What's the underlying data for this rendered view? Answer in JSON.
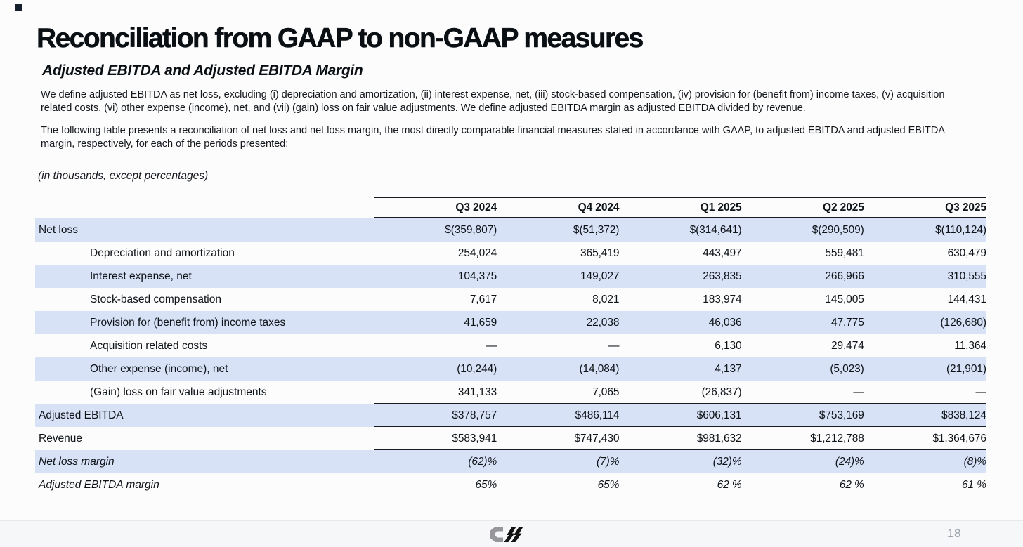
{
  "slide": {
    "title": "Reconciliation from GAAP to non-GAAP measures",
    "subtitle": "Adjusted EBITDA and Adjusted EBITDA Margin",
    "paragraph1": "We define adjusted EBITDA as net loss, excluding (i) depreciation and amortization, (ii) interest expense, net, (iii) stock-based compensation, (iv) provision for (benefit from) income taxes, (v) acquisition related costs, (vi) other expense (income), net, and (vii) (gain) loss on fair value adjustments. We define adjusted EBITDA margin as adjusted EBITDA divided by revenue.",
    "paragraph2": "The following table presents a reconciliation of net loss and net loss margin, the most directly comparable financial measures stated in accordance with GAAP, to adjusted EBITDA and adjusted EBITDA margin, respectively, for each of the periods presented:",
    "units_note": "(in thousands, except percentages)",
    "page_number": "18"
  },
  "colors": {
    "stripe": "#d8e2f7",
    "rule": "#161b22",
    "footer_bg": "#f6f7f9",
    "page_number": "#9aa1ac",
    "logo_gray": "#97979b",
    "logo_black": "#141414"
  },
  "icons": {
    "logo": "coreweave-logo"
  },
  "table": {
    "columns": [
      "Q3 2024",
      "Q4 2024",
      "Q1 2025",
      "Q2 2025",
      "Q3 2025"
    ],
    "rows": [
      {
        "label": "Net loss",
        "indent": false,
        "italic": false,
        "shaded": true,
        "rules": [],
        "values": [
          "$(359,807)",
          "$(51,372)",
          "$(314,641)",
          "$(290,509)",
          "$(110,124)"
        ]
      },
      {
        "label": "Depreciation and amortization",
        "indent": true,
        "italic": false,
        "shaded": false,
        "rules": [],
        "values": [
          "254,024",
          "365,419",
          "443,497",
          "559,481",
          "630,479"
        ]
      },
      {
        "label": "Interest expense, net",
        "indent": true,
        "italic": false,
        "shaded": true,
        "rules": [],
        "values": [
          "104,375",
          "149,027",
          "263,835",
          "266,966",
          "310,555"
        ]
      },
      {
        "label": "Stock-based compensation",
        "indent": true,
        "italic": false,
        "shaded": false,
        "rules": [],
        "values": [
          "7,617",
          "8,021",
          "183,974",
          "145,005",
          "144,431"
        ]
      },
      {
        "label": "Provision for (benefit from) income taxes",
        "indent": true,
        "italic": false,
        "shaded": true,
        "rules": [],
        "values": [
          "41,659",
          "22,038",
          "46,036",
          "47,775",
          "(126,680)"
        ]
      },
      {
        "label": "Acquisition related costs",
        "indent": true,
        "italic": false,
        "shaded": false,
        "rules": [],
        "values": [
          "—",
          "—",
          "6,130",
          "29,474",
          "11,364"
        ]
      },
      {
        "label": "Other expense (income), net",
        "indent": true,
        "italic": false,
        "shaded": true,
        "rules": [],
        "values": [
          "(10,244)",
          "(14,084)",
          "4,137",
          "(5,023)",
          "(21,901)"
        ]
      },
      {
        "label": "(Gain) loss on fair value adjustments",
        "indent": true,
        "italic": false,
        "shaded": false,
        "rules": [],
        "values": [
          "341,133",
          "7,065",
          "(26,837)",
          "—",
          "—"
        ]
      },
      {
        "label": "Adjusted EBITDA",
        "indent": false,
        "italic": false,
        "shaded": true,
        "rules": [
          "top",
          "bottom"
        ],
        "values": [
          "$378,757",
          "$486,114",
          "$606,131",
          "$753,169",
          "$838,124"
        ]
      },
      {
        "label": "Revenue",
        "indent": false,
        "italic": false,
        "shaded": false,
        "rules": [
          "bottom"
        ],
        "values": [
          "$583,941",
          "$747,430",
          "$981,632",
          "$1,212,788",
          "$1,364,676"
        ]
      },
      {
        "label": "Net loss margin",
        "indent": false,
        "italic": true,
        "shaded": true,
        "rules": [],
        "values": [
          "(62)%",
          "(7)%",
          "(32)%",
          "(24)%",
          "(8)%"
        ]
      },
      {
        "label": "Adjusted EBITDA margin",
        "indent": false,
        "italic": true,
        "shaded": false,
        "rules": [],
        "values": [
          "65%",
          "65%",
          "62 %",
          "62 %",
          "61 %"
        ]
      }
    ]
  }
}
